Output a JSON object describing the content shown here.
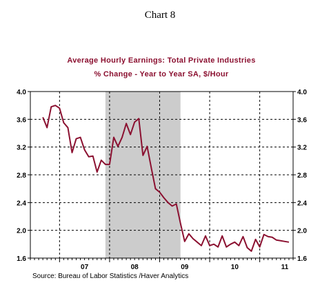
{
  "chart_label": "Chart 8",
  "source": "Source:  Bureau of Labor Statistics /Haver Analytics",
  "colors": {
    "line": "#8b1030",
    "title": "#8b1030",
    "recession_shade": "#cccccc",
    "grid": "#000000"
  },
  "chart_data": {
    "type": "line",
    "title": "Average Hourly Earnings: Total Private Industries",
    "subtitle": "% Change - Year to Year    SA, $/Hour",
    "xlabel": "",
    "ylabel": "",
    "x_tick_labels": [
      "07",
      "08",
      "09",
      "10",
      "11"
    ],
    "y_tick_labels": [
      "4.0",
      "3.6",
      "3.2",
      "2.8",
      "2.4",
      "2.0",
      "1.6"
    ],
    "ylim": [
      1.6,
      4.0
    ],
    "xlim": [
      "2006-06",
      "2011-09"
    ],
    "grid": true,
    "grid_style": "dashed",
    "y_axis_both_sides": true,
    "shaded_periods": [
      {
        "start": "2007-12",
        "end": "2009-06"
      }
    ],
    "series": [
      {
        "x": [
          "2006-09",
          "2006-10",
          "2006-11",
          "2006-12",
          "2007-01",
          "2007-02",
          "2007-03",
          "2007-04",
          "2007-05",
          "2007-06",
          "2007-07",
          "2007-08",
          "2007-09",
          "2007-10",
          "2007-11",
          "2007-12",
          "2008-01",
          "2008-02",
          "2008-03",
          "2008-04",
          "2008-05",
          "2008-06",
          "2008-07",
          "2008-08",
          "2008-09",
          "2008-10",
          "2008-11",
          "2008-12",
          "2009-01",
          "2009-02",
          "2009-03",
          "2009-04",
          "2009-05",
          "2009-06",
          "2009-07",
          "2009-08",
          "2009-09",
          "2009-10",
          "2009-11",
          "2009-12",
          "2010-01",
          "2010-02",
          "2010-03",
          "2010-04",
          "2010-05",
          "2010-06",
          "2010-07",
          "2010-08",
          "2010-09",
          "2010-10",
          "2010-11",
          "2010-12",
          "2011-01",
          "2011-02",
          "2011-03",
          "2011-04",
          "2011-05",
          "2011-06",
          "2011-07",
          "2011-08"
        ],
        "values": [
          3.63,
          3.48,
          3.78,
          3.8,
          3.76,
          3.55,
          3.48,
          3.12,
          3.32,
          3.34,
          3.16,
          3.06,
          3.07,
          2.84,
          3.01,
          2.95,
          2.95,
          3.34,
          3.21,
          3.34,
          3.54,
          3.38,
          3.56,
          3.61,
          3.08,
          3.21,
          2.9,
          2.6,
          2.55,
          2.47,
          2.4,
          2.35,
          2.38,
          2.1,
          1.84,
          1.95,
          1.88,
          1.83,
          1.78,
          1.92,
          1.78,
          1.8,
          1.76,
          1.92,
          1.76,
          1.8,
          1.83,
          1.78,
          1.91,
          1.75,
          1.7,
          1.87,
          1.76,
          1.94,
          1.91,
          1.9,
          1.86,
          1.85,
          1.84,
          1.83
        ]
      }
    ]
  }
}
